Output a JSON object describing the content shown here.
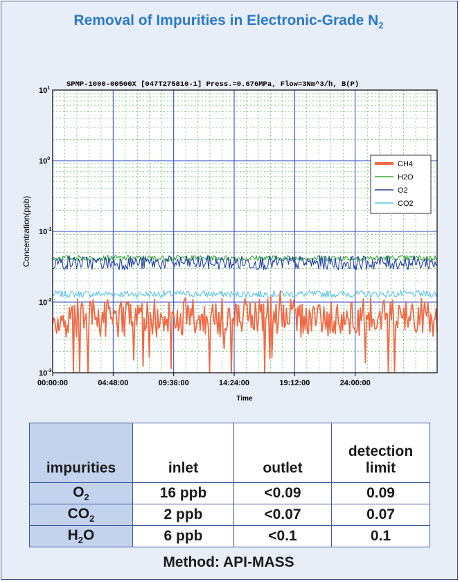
{
  "title_text": "Removal of Impurities in Electronic-Grade N",
  "title_sub": "2",
  "chart_data": {
    "type": "line",
    "header": "SPMP-1000-00500X [047T275810-1]  Press.=0.676MPa, Flow=3Nm^3/h, B(P)",
    "xlabel": "Time",
    "ylabel": "Concentration(ppb)",
    "yscale": "log",
    "ylim": [
      0.001,
      10
    ],
    "ytick_labels": [
      {
        "base": "10",
        "exp": "-3"
      },
      {
        "base": "10",
        "exp": "-2"
      },
      {
        "base": "10",
        "exp": "-1"
      },
      {
        "base": "10",
        "exp": "0"
      },
      {
        "base": "10",
        "exp": "1"
      }
    ],
    "xtick_labels": [
      "00:00:00",
      "04:48:00",
      "09:36:00",
      "14:24:00",
      "19:12:00",
      "24:00:00"
    ],
    "xlim_hours": [
      0,
      30.5
    ],
    "grid": true,
    "legend_position": "right",
    "series": [
      {
        "name": "CH4",
        "color": "#f06a45",
        "level": 0.006,
        "noise": 0.5,
        "dips": true
      },
      {
        "name": "H2O",
        "color": "#33a533",
        "level": 0.042,
        "noise": 0.04,
        "dips": false
      },
      {
        "name": "O2",
        "color": "#1f3fa0",
        "level": 0.036,
        "noise": 0.1,
        "dips": false
      },
      {
        "name": "CO2",
        "color": "#5bc4e6",
        "level": 0.013,
        "noise": 0.05,
        "dips": false
      }
    ]
  },
  "table": {
    "headers": {
      "impurities": "impurities",
      "inlet": "inlet",
      "outlet": "outlet",
      "detection_line1": "detection",
      "detection_line2": "limit"
    },
    "rows": [
      {
        "imp": "O",
        "sub": "2",
        "suffix": "",
        "inlet": "16 ppb",
        "outlet": "<0.09",
        "limit": "0.09"
      },
      {
        "imp": "CO",
        "sub": "2",
        "suffix": "",
        "inlet": "2 ppb",
        "outlet": "<0.07",
        "limit": "0.07"
      },
      {
        "imp": "H",
        "sub": "2",
        "suffix": "O",
        "inlet": "6 ppb",
        "outlet": "<0.1",
        "limit": "0.1"
      }
    ]
  },
  "method": "Method: API-MASS"
}
